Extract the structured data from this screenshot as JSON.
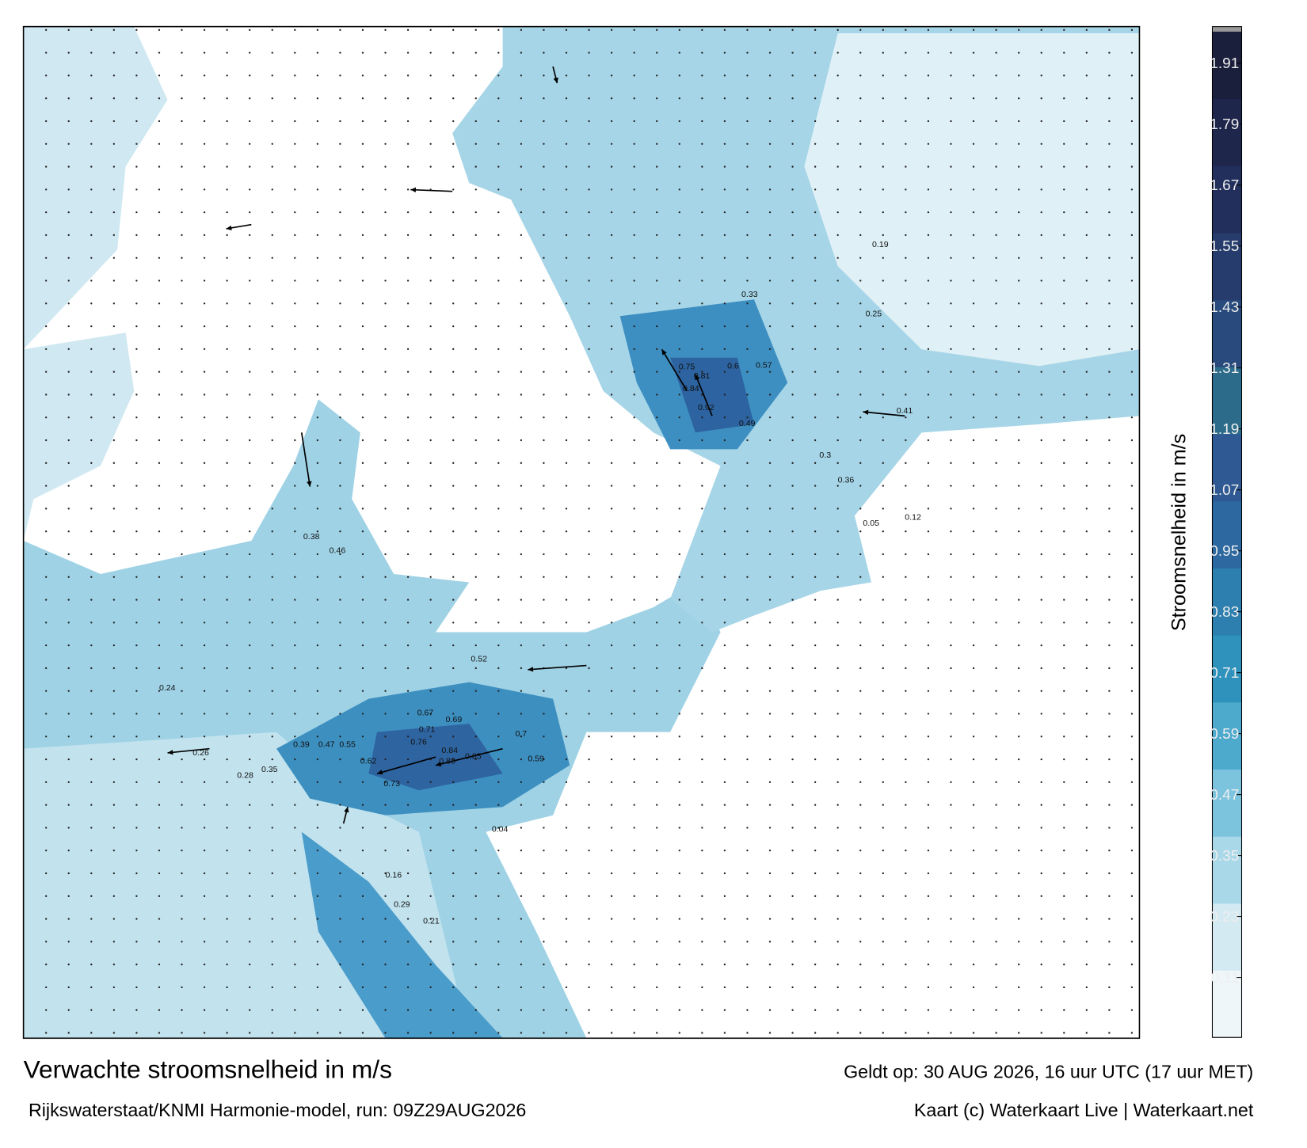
{
  "map": {
    "speed_labels": [
      "0.88",
      "0.85",
      "0.84",
      "0.76",
      "0.73",
      "0.71",
      "0.69",
      "0.67",
      "0.62",
      "0.55",
      "0.47",
      "0.39",
      "0.26",
      "0.28",
      "0.24",
      "0.35",
      "0.92",
      "0.84",
      "0.81",
      "0.75",
      "0.6",
      "0.57",
      "0.49",
      "0.41",
      "0.36",
      "0.33",
      "0.3",
      "0.25",
      "0.19",
      "0.12",
      "0.05",
      "0.04",
      "0.16",
      "0.21",
      "0.29",
      "0.38",
      "0.46",
      "0.52",
      "0.59",
      "0.7"
    ]
  },
  "colorbar": {
    "label": "Stroomsnelheid in m/s",
    "ticks": [
      {
        "value": 0.11,
        "label": "0.11"
      },
      {
        "value": 0.23,
        "label": "0.23"
      },
      {
        "value": 0.35,
        "label": "0.35"
      },
      {
        "value": 0.47,
        "label": "0.47"
      },
      {
        "value": 0.59,
        "label": "0.59"
      },
      {
        "value": 0.71,
        "label": "0.71"
      },
      {
        "value": 0.83,
        "label": "0.83"
      },
      {
        "value": 0.95,
        "label": "0.95"
      },
      {
        "value": 1.07,
        "label": "1.07"
      },
      {
        "value": 1.19,
        "label": "1.19"
      },
      {
        "value": 1.31,
        "label": "1.31"
      },
      {
        "value": 1.43,
        "label": "1.43"
      },
      {
        "value": 1.55,
        "label": "1.55"
      },
      {
        "value": 1.67,
        "label": "1.67"
      },
      {
        "value": 1.79,
        "label": "1.79"
      },
      {
        "value": 1.91,
        "label": "1.91"
      }
    ],
    "colors": [
      "#eef6f9",
      "#d3eaf2",
      "#a9d8e8",
      "#7cc3de",
      "#4eaacd",
      "#2f92bc",
      "#2c7fae",
      "#2d68a0",
      "#2f5993",
      "#2c6c8a",
      "#284a7c",
      "#253c6c",
      "#222f5c",
      "#1e264c",
      "#1a1f3c"
    ]
  },
  "footer": {
    "title": "Verwachte stroomsnelheid in m/s",
    "valid": "Geldt op: 30 AUG 2026, 16 uur UTC (17 uur MET)",
    "source": "Rijkswaterstaat/KNMI Harmonie-model, run: 09Z29AUG2026",
    "credit": "Kaart (c) Waterkaart Live | Waterkaart.net"
  }
}
